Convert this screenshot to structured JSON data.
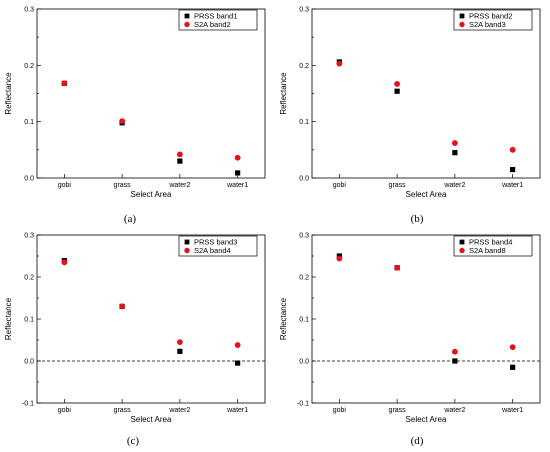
{
  "chart_data": [
    {
      "type": "scatter",
      "caption": "(a)",
      "categories": [
        "gobi",
        "grass",
        "water2",
        "water1"
      ],
      "series": [
        {
          "name": "PRSS band1",
          "marker": "square",
          "color": "#000000",
          "values": [
            0.168,
            0.098,
            0.03,
            0.009
          ]
        },
        {
          "name": "S2A band2",
          "marker": "circle",
          "color": "#e8101a",
          "values": [
            0.168,
            0.101,
            0.042,
            0.036
          ]
        }
      ],
      "xlabel": "Select Area",
      "ylabel": "Reflectance",
      "ylim": [
        0.0,
        0.3
      ],
      "yticks": [
        "0.0",
        "0.1",
        "0.2",
        "0.3"
      ],
      "zero_line": false,
      "legend_position": "top-right"
    },
    {
      "type": "scatter",
      "caption": "(b)",
      "categories": [
        "gobi",
        "grass",
        "water2",
        "water1"
      ],
      "series": [
        {
          "name": "PRSS band2",
          "marker": "square",
          "color": "#000000",
          "values": [
            0.206,
            0.154,
            0.045,
            0.015
          ]
        },
        {
          "name": "S2A band3",
          "marker": "circle",
          "color": "#e8101a",
          "values": [
            0.203,
            0.167,
            0.062,
            0.05
          ]
        }
      ],
      "xlabel": "Select Area",
      "ylabel": "Reflectance",
      "ylim": [
        0.0,
        0.3
      ],
      "yticks": [
        "0.0",
        "0.1",
        "0.2",
        "0.3"
      ],
      "zero_line": false,
      "legend_position": "top-right"
    },
    {
      "type": "scatter",
      "caption": "(c)",
      "categories": [
        "gobi",
        "grass",
        "water2",
        "water1"
      ],
      "series": [
        {
          "name": "PRSS band3",
          "marker": "square",
          "color": "#000000",
          "values": [
            0.239,
            0.13,
            0.023,
            -0.005
          ]
        },
        {
          "name": "S2A band4",
          "marker": "circle",
          "color": "#e8101a",
          "values": [
            0.235,
            0.13,
            0.045,
            0.038
          ]
        }
      ],
      "xlabel": "Select Area",
      "ylabel": "Reflectance",
      "ylim": [
        -0.1,
        0.3
      ],
      "yticks": [
        "-0.1",
        "0.0",
        "0.1",
        "0.2",
        "0.3"
      ],
      "zero_line": true,
      "legend_position": "top-right"
    },
    {
      "type": "scatter",
      "caption": "(d)",
      "categories": [
        "gobi",
        "grass",
        "water2",
        "water1"
      ],
      "series": [
        {
          "name": "PRSS band4",
          "marker": "square",
          "color": "#000000",
          "values": [
            0.25,
            0.222,
            0.0,
            -0.015
          ]
        },
        {
          "name": "S2A band8",
          "marker": "circle",
          "color": "#e8101a",
          "values": [
            0.244,
            0.222,
            0.022,
            0.033
          ]
        }
      ],
      "xlabel": "Select Area",
      "ylabel": "Reflectance",
      "ylim": [
        -0.1,
        0.3
      ],
      "yticks": [
        "-0.1",
        "0.0",
        "0.1",
        "0.2",
        "0.3"
      ],
      "zero_line": true,
      "legend_position": "top-right"
    }
  ]
}
